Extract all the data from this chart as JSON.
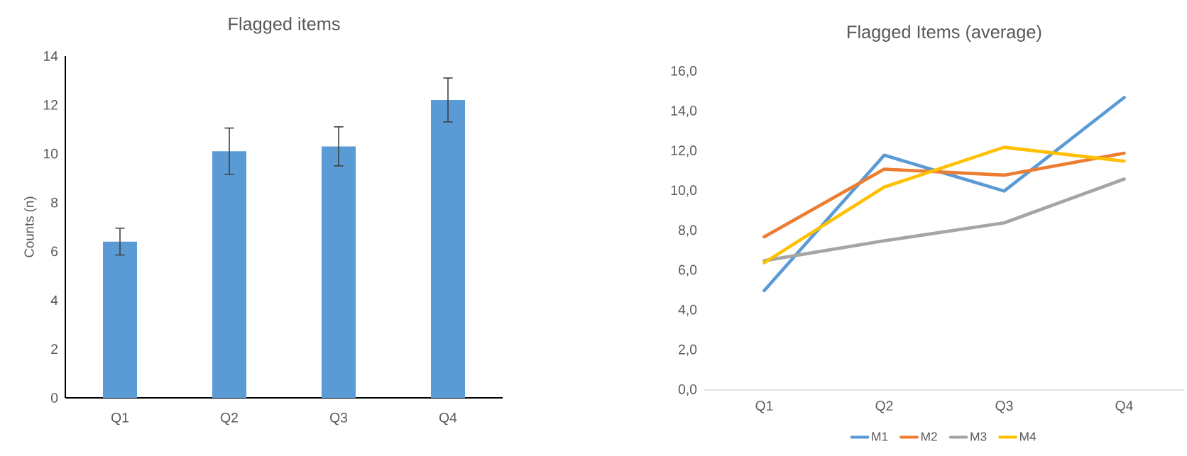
{
  "chart_data": [
    {
      "type": "bar",
      "title": "Flagged items",
      "ylabel": "Counts (n)",
      "categories": [
        "Q1",
        "Q2",
        "Q3",
        "Q4"
      ],
      "values": [
        6.4,
        10.1,
        10.3,
        12.2
      ],
      "errors": [
        0.55,
        0.95,
        0.8,
        0.9
      ],
      "color": "#5b9bd5",
      "ylim": [
        0,
        14
      ],
      "yticks": [
        0,
        2,
        4,
        6,
        8,
        10,
        12,
        14
      ],
      "grid": false
    },
    {
      "type": "line",
      "title": "Flagged Items (average)",
      "categories": [
        "Q1",
        "Q2",
        "Q3",
        "Q4"
      ],
      "series": [
        {
          "name": "M1",
          "color": "#5b9bd5",
          "values": [
            5.0,
            11.8,
            10.0,
            14.7
          ]
        },
        {
          "name": "M2",
          "color": "#ed7d31",
          "values": [
            7.7,
            11.1,
            10.8,
            11.9
          ]
        },
        {
          "name": "M3",
          "color": "#a5a5a5",
          "values": [
            6.5,
            7.5,
            8.4,
            10.6
          ]
        },
        {
          "name": "M4",
          "color": "#ffc000",
          "values": [
            6.4,
            10.2,
            12.2,
            11.5
          ]
        }
      ],
      "ylim": [
        0,
        16
      ],
      "yticks": [
        {
          "value": 0,
          "label": "0,0"
        },
        {
          "value": 2,
          "label": "2,0"
        },
        {
          "value": 4,
          "label": "4,0"
        },
        {
          "value": 6,
          "label": "6,0"
        },
        {
          "value": 8,
          "label": "8,0"
        },
        {
          "value": 10,
          "label": "10,0"
        },
        {
          "value": 12,
          "label": "12,0"
        },
        {
          "value": 14,
          "label": "14,0"
        },
        {
          "value": 16,
          "label": "16,0"
        }
      ],
      "legend": "bottom",
      "grid": false
    }
  ]
}
